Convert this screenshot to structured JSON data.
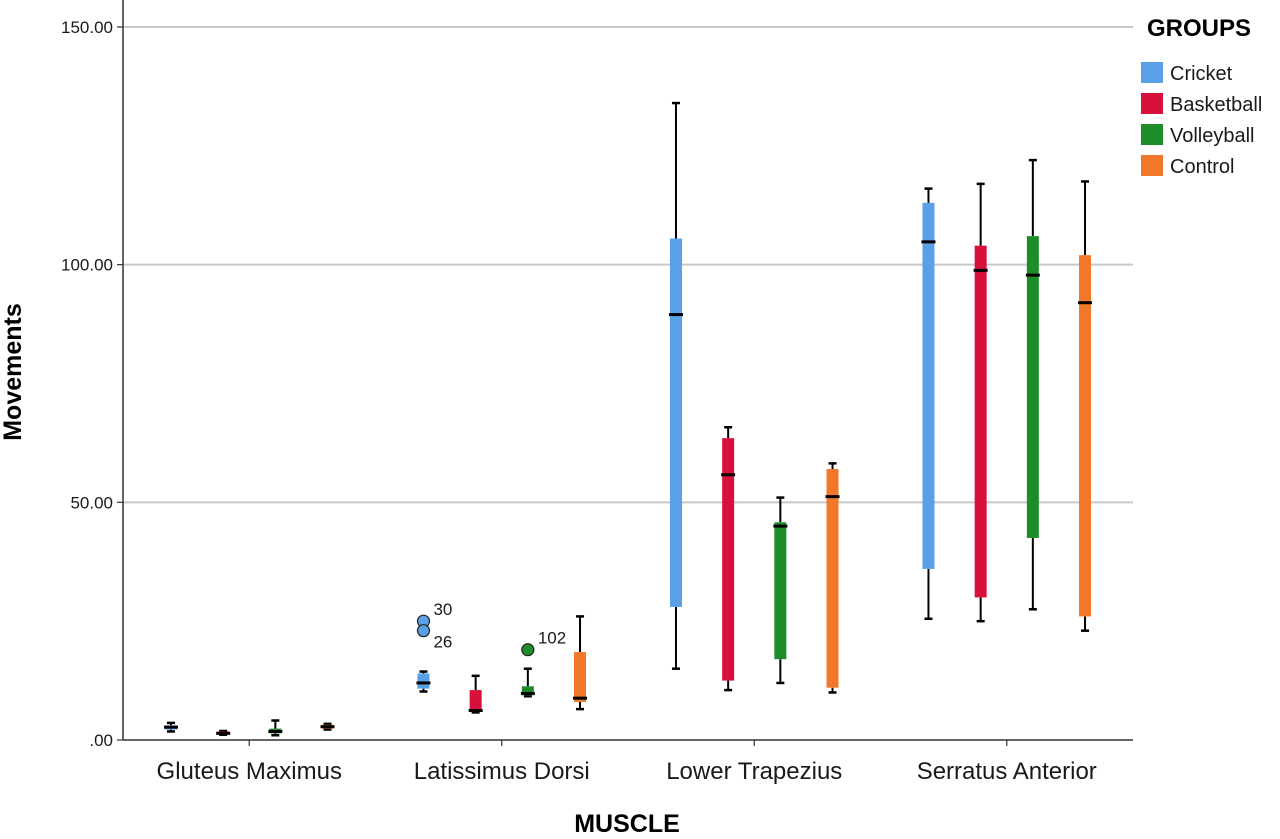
{
  "chart_data": {
    "type": "boxplot",
    "xlabel": "MUSCLE",
    "ylabel": "Movements",
    "ylim": [
      0,
      150
    ],
    "yticks": [
      0,
      50,
      100,
      150
    ],
    "ytick_labels": [
      ".00",
      "50.00",
      "100.00",
      "150.00"
    ],
    "grid": "horizontal",
    "legend": {
      "title": "GROUPS",
      "position": "right"
    },
    "categories": [
      "Gluteus Maximus",
      "Latissimus Dorsi",
      "Lower Trapezius",
      "Serratus Anterior"
    ],
    "series": [
      {
        "name": "Cricket",
        "color": "#5aa0e6",
        "boxes": [
          {
            "min": 1.8,
            "q1": 2.2,
            "median": 2.7,
            "q3": 3.1,
            "max": 3.6,
            "outliers": []
          },
          {
            "min": 10.2,
            "q1": 10.8,
            "median": 12.0,
            "q3": 14.0,
            "max": 14.4,
            "outliers": [
              {
                "value": 25.0,
                "label": "30"
              },
              {
                "value": 23.0,
                "label": "26"
              }
            ]
          },
          {
            "min": 15.0,
            "q1": 28.0,
            "median": 89.5,
            "q3": 105.5,
            "max": 134.0,
            "outliers": []
          },
          {
            "min": 25.5,
            "q1": 36.0,
            "median": 104.8,
            "q3": 113.0,
            "max": 116.0,
            "outliers": []
          }
        ]
      },
      {
        "name": "Basketball",
        "color": "#d8103c",
        "boxes": [
          {
            "min": 1.1,
            "q1": 1.2,
            "median": 1.4,
            "q3": 1.8,
            "max": 1.9,
            "outliers": []
          },
          {
            "min": 5.8,
            "q1": 6.0,
            "median": 6.2,
            "q3": 10.5,
            "max": 13.5,
            "outliers": []
          },
          {
            "min": 10.5,
            "q1": 12.5,
            "median": 55.8,
            "q3": 63.5,
            "max": 65.8,
            "outliers": []
          },
          {
            "min": 25.0,
            "q1": 30.0,
            "median": 98.8,
            "q3": 104.0,
            "max": 117.0,
            "outliers": []
          }
        ]
      },
      {
        "name": "Volleyball",
        "color": "#1e8c28",
        "boxes": [
          {
            "min": 1.0,
            "q1": 1.4,
            "median": 1.8,
            "q3": 2.4,
            "max": 4.1,
            "outliers": []
          },
          {
            "min": 9.2,
            "q1": 9.4,
            "median": 9.8,
            "q3": 11.3,
            "max": 15.0,
            "outliers": [
              {
                "value": 19.0,
                "label": "102"
              }
            ]
          },
          {
            "min": 12.0,
            "q1": 17.0,
            "median": 45.0,
            "q3": 45.8,
            "max": 51.0,
            "outliers": []
          },
          {
            "min": 27.5,
            "q1": 42.5,
            "median": 97.8,
            "q3": 106.0,
            "max": 122.0,
            "outliers": []
          }
        ]
      },
      {
        "name": "Control",
        "color": "#f07828",
        "boxes": [
          {
            "min": 2.2,
            "q1": 2.4,
            "median": 2.8,
            "q3": 3.2,
            "max": 3.4,
            "outliers": []
          },
          {
            "min": 6.5,
            "q1": 8.0,
            "median": 8.8,
            "q3": 18.5,
            "max": 26.0,
            "outliers": []
          },
          {
            "min": 10.0,
            "q1": 11.0,
            "median": 51.2,
            "q3": 57.0,
            "max": 58.2,
            "outliers": []
          },
          {
            "min": 23.0,
            "q1": 26.0,
            "median": 92.0,
            "q3": 102.0,
            "max": 117.5,
            "outliers": []
          }
        ]
      }
    ]
  }
}
